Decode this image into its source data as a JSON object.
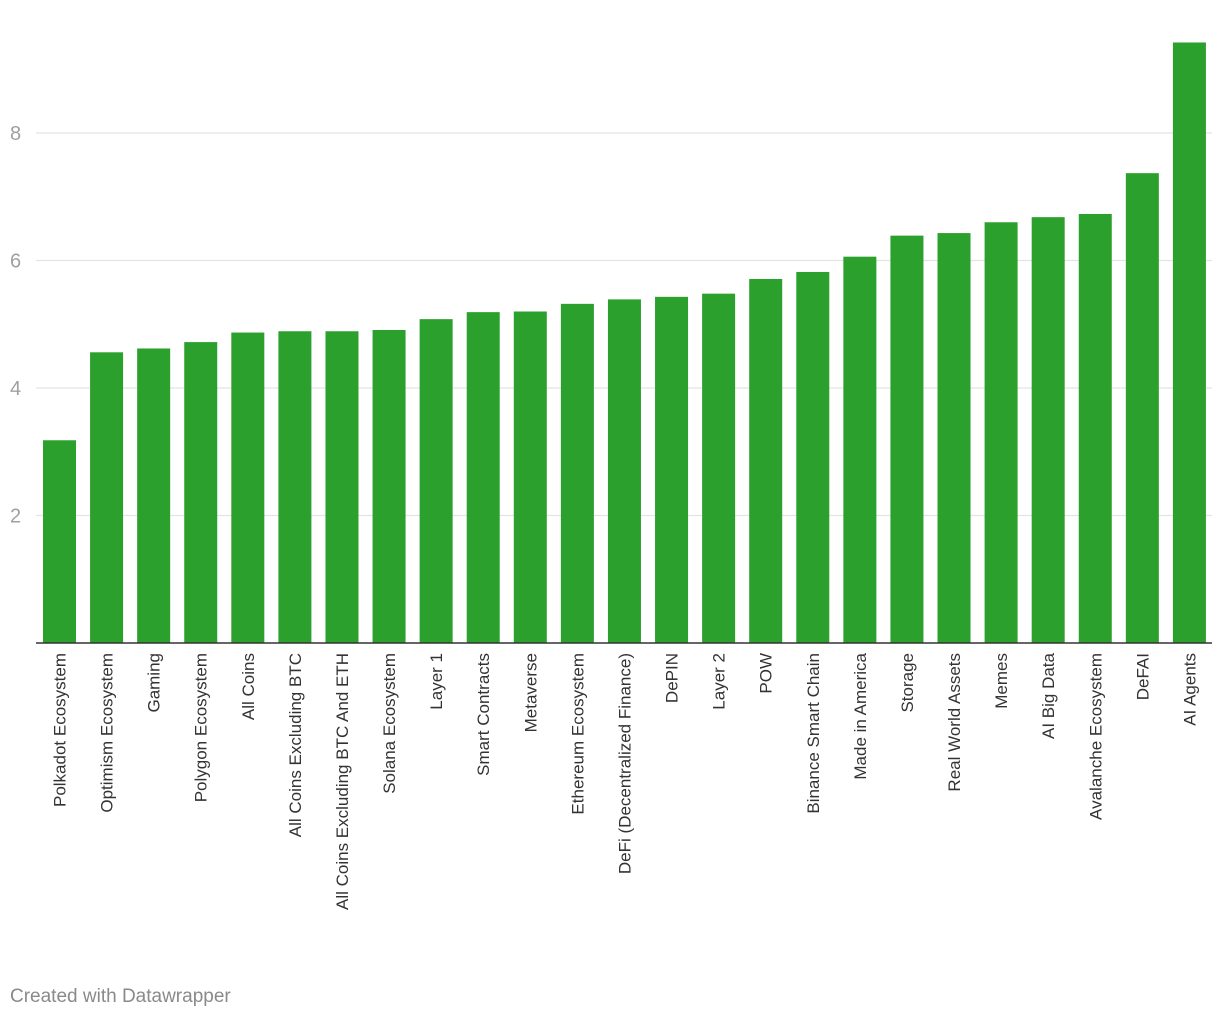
{
  "colors": {
    "bar": "#2ca02c",
    "grid": "#e3e3e3",
    "tick_text": "#a0a0a0",
    "baseline": "#333333"
  },
  "credit": "Created with Datawrapper",
  "chart_data": {
    "type": "bar",
    "title": "",
    "xlabel": "",
    "ylabel": "",
    "ylim": [
      0,
      10
    ],
    "yticks": [
      2,
      4,
      6,
      8
    ],
    "grid": true,
    "categories": [
      "Polkadot Ecosystem",
      "Optimism Ecosystem",
      "Gaming",
      "Polygon Ecosystem",
      "All Coins",
      "All Coins Excluding BTC",
      "All Coins Excluding BTC And ETH",
      "Solana Ecosystem",
      "Layer 1",
      "Smart Contracts",
      "Metaverse",
      "Ethereum Ecosystem",
      "DeFi (Decentralized Finance)",
      "DePIN",
      "Layer 2",
      "POW",
      "Binance Smart Chain",
      "Made in America",
      "Storage",
      "Real World Assets",
      "Memes",
      "AI Big Data",
      "Avalanche Ecosystem",
      "DeFAI",
      "AI Agents"
    ],
    "values": [
      3.18,
      4.56,
      4.62,
      4.72,
      4.87,
      4.89,
      4.89,
      4.91,
      5.08,
      5.19,
      5.2,
      5.32,
      5.39,
      5.43,
      5.48,
      5.71,
      5.82,
      6.06,
      6.39,
      6.43,
      6.6,
      6.68,
      6.73,
      7.37,
      9.42
    ]
  }
}
